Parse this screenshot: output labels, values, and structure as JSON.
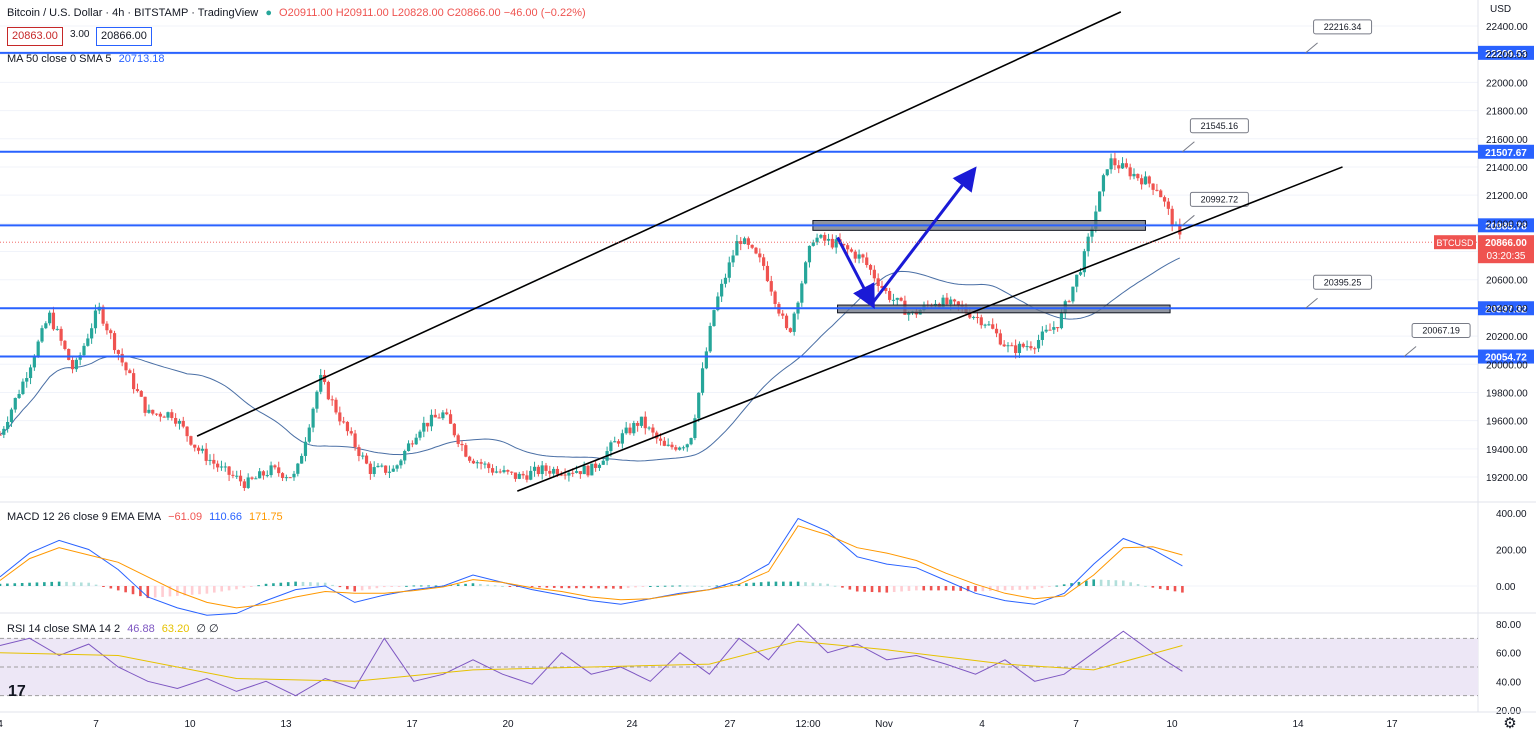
{
  "header": {
    "symbol_title": "Bitcoin / U.S. Dollar · 4h · BITSTAMP · TradingView",
    "ohlc": "O20911.00 H20911.00 L20828.00 C20866.00 −46.00 (−0.22%)",
    "bid": "20863.00",
    "spread": "3.00",
    "ask": "20866.00",
    "ma_label": "MA 50 close 0 SMA 5",
    "ma_value": "20713.18"
  },
  "macd_legend": {
    "label": "MACD 12 26 close 9 EMA EMA",
    "v1": "−61.09",
    "v2": "110.66",
    "v3": "171.75"
  },
  "rsi_legend": {
    "label": "RSI 14 close SMA 14 2",
    "v1": "46.88",
    "v2": "63.20",
    "v3": "∅ ∅"
  },
  "colors": {
    "up": "#26a69a",
    "down": "#ef5350",
    "level": "#2962ff",
    "ma": "#4a6fa5",
    "macd": "#2962ff",
    "signal": "#ff9800",
    "rsi": "#7e57c2",
    "rsi_band": "#ede7f6"
  },
  "icons": [
    "settings-gear-icon",
    "tradingview-logo-icon"
  ],
  "chart_data": [
    {
      "type": "candlestick",
      "title": "Bitcoin / U.S. Dollar · 4h · BITSTAMP · TradingView",
      "currency": "USD",
      "ylim": [
        19100,
        22500
      ],
      "y_ticks": [
        "22400.00",
        "22200.00",
        "22000.00",
        "21800.00",
        "21600.00",
        "21400.00",
        "21200.00",
        "21000.00",
        "20800.00",
        "20600.00",
        "20400.00",
        "20200.00",
        "20000.00",
        "19800.00",
        "19600.00",
        "19400.00",
        "19200.00"
      ],
      "x_labels": [
        "4",
        "7",
        "10",
        "13",
        "17",
        "20",
        "24",
        "27",
        "12:00",
        "Nov",
        "4",
        "7",
        "10",
        "14",
        "17"
      ],
      "price_path": [
        [
          0,
          19500
        ],
        [
          1,
          19900
        ],
        [
          2,
          20350
        ],
        [
          3,
          19950
        ],
        [
          4,
          20400
        ],
        [
          5,
          20000
        ],
        [
          6,
          19650
        ],
        [
          7,
          19650
        ],
        [
          8,
          19400
        ],
        [
          9,
          19250
        ],
        [
          10,
          19150
        ],
        [
          11,
          19250
        ],
        [
          12,
          19200
        ],
        [
          13,
          19900
        ],
        [
          14,
          19550
        ],
        [
          15,
          19250
        ],
        [
          16,
          19250
        ],
        [
          17,
          19550
        ],
        [
          18,
          19650
        ],
        [
          19,
          19350
        ],
        [
          20,
          19250
        ],
        [
          21,
          19200
        ],
        [
          22,
          19250
        ],
        [
          23,
          19250
        ],
        [
          24,
          19250
        ],
        [
          25,
          19450
        ],
        [
          26,
          19600
        ],
        [
          27,
          19400
        ],
        [
          28,
          19450
        ],
        [
          29,
          20400
        ],
        [
          30,
          20900
        ],
        [
          31,
          20700
        ],
        [
          32,
          20200
        ],
        [
          33,
          20900
        ],
        [
          34,
          20850
        ],
        [
          35,
          20750
        ],
        [
          36,
          20500
        ],
        [
          37,
          20350
        ],
        [
          38,
          20450
        ],
        [
          39,
          20400
        ],
        [
          40,
          20300
        ],
        [
          41,
          20100
        ],
        [
          42,
          20150
        ],
        [
          43,
          20300
        ],
        [
          44,
          20750
        ],
        [
          45,
          21450
        ],
        [
          46,
          21350
        ],
        [
          47,
          21250
        ],
        [
          48,
          20850
        ]
      ],
      "horizontal_levels": [
        {
          "price": 22209.53,
          "label": "22209.53",
          "callout": "22216.34"
        },
        {
          "price": 21507.67,
          "label": "21507.67",
          "callout": "21545.16"
        },
        {
          "price": 20985.78,
          "label": "20985.78",
          "callout": "20992.72"
        },
        {
          "price": 20397.32,
          "label": "20397.32",
          "callout": "20395.25"
        },
        {
          "price": 20054.72,
          "label": "20054.72",
          "callout": "20067.19"
        }
      ],
      "current_price": {
        "symbol": "BTCUSD",
        "price": "20866.00",
        "countdown": "03:20:35"
      },
      "zones": [
        [
          20950,
          21020
        ],
        [
          20365,
          20420
        ]
      ],
      "channel": {
        "upper": [
          [
            8,
            19490
          ],
          [
            45.5,
            22500
          ]
        ],
        "lower": [
          [
            21,
            19100
          ],
          [
            54.5,
            21400
          ]
        ]
      },
      "projection": [
        [
          34,
          20900
        ],
        [
          35.4,
          20430
        ],
        [
          39.5,
          21370
        ]
      ]
    },
    {
      "type": "histogram+line",
      "title": "MACD 12 26 close 9 EMA EMA",
      "ylim": [
        -200,
        450
      ],
      "y_ticks": [
        "400.00",
        "200.00",
        "0.00"
      ],
      "macd": [
        [
          0,
          50
        ],
        [
          1,
          180
        ],
        [
          2,
          250
        ],
        [
          3,
          200
        ],
        [
          4,
          90
        ],
        [
          5,
          -60
        ],
        [
          6,
          -120
        ],
        [
          7,
          -160
        ],
        [
          8,
          -150
        ],
        [
          9,
          -80
        ],
        [
          10,
          -20
        ],
        [
          11,
          0
        ],
        [
          12,
          -90
        ],
        [
          13,
          -50
        ],
        [
          14,
          -20
        ],
        [
          15,
          0
        ],
        [
          16,
          60
        ],
        [
          17,
          20
        ],
        [
          18,
          -20
        ],
        [
          19,
          -50
        ],
        [
          20,
          -80
        ],
        [
          21,
          -100
        ],
        [
          22,
          -70
        ],
        [
          23,
          -40
        ],
        [
          24,
          -20
        ],
        [
          25,
          30
        ],
        [
          26,
          120
        ],
        [
          27,
          370
        ],
        [
          28,
          300
        ],
        [
          29,
          160
        ],
        [
          30,
          120
        ],
        [
          31,
          100
        ],
        [
          32,
          30
        ],
        [
          33,
          -40
        ],
        [
          34,
          -80
        ],
        [
          35,
          -100
        ],
        [
          36,
          -40
        ],
        [
          37,
          120
        ],
        [
          38,
          260
        ],
        [
          39,
          200
        ],
        [
          40,
          110
        ]
      ],
      "signal": [
        [
          0,
          30
        ],
        [
          1,
          150
        ],
        [
          2,
          210
        ],
        [
          3,
          170
        ],
        [
          4,
          130
        ],
        [
          5,
          50
        ],
        [
          6,
          -30
        ],
        [
          7,
          -90
        ],
        [
          8,
          -120
        ],
        [
          9,
          -100
        ],
        [
          10,
          -60
        ],
        [
          11,
          -30
        ],
        [
          12,
          -40
        ],
        [
          13,
          -40
        ],
        [
          14,
          -25
        ],
        [
          15,
          -5
        ],
        [
          16,
          35
        ],
        [
          17,
          20
        ],
        [
          18,
          -10
        ],
        [
          19,
          -30
        ],
        [
          20,
          -60
        ],
        [
          21,
          -75
        ],
        [
          22,
          -70
        ],
        [
          23,
          -45
        ],
        [
          24,
          -20
        ],
        [
          25,
          10
        ],
        [
          26,
          80
        ],
        [
          27,
          330
        ],
        [
          28,
          280
        ],
        [
          29,
          210
        ],
        [
          30,
          180
        ],
        [
          31,
          140
        ],
        [
          32,
          70
        ],
        [
          33,
          10
        ],
        [
          34,
          -40
        ],
        [
          35,
          -70
        ],
        [
          36,
          -55
        ],
        [
          37,
          60
        ],
        [
          38,
          210
        ],
        [
          39,
          215
        ],
        [
          40,
          170
        ]
      ]
    },
    {
      "type": "line",
      "title": "RSI 14 close SMA 14 2",
      "ylim": [
        20,
        86
      ],
      "y_ticks": [
        "80.00",
        "60.00",
        "40.00",
        "20.00"
      ],
      "bands": [
        70,
        50,
        30
      ],
      "rsi": [
        [
          0,
          65
        ],
        [
          1,
          70
        ],
        [
          2,
          58
        ],
        [
          3,
          66
        ],
        [
          4,
          50
        ],
        [
          5,
          40
        ],
        [
          6,
          35
        ],
        [
          7,
          42
        ],
        [
          8,
          33
        ],
        [
          9,
          40
        ],
        [
          10,
          30
        ],
        [
          11,
          42
        ],
        [
          12,
          35
        ],
        [
          13,
          70
        ],
        [
          14,
          40
        ],
        [
          15,
          45
        ],
        [
          16,
          55
        ],
        [
          17,
          45
        ],
        [
          18,
          38
        ],
        [
          19,
          60
        ],
        [
          20,
          45
        ],
        [
          21,
          50
        ],
        [
          22,
          40
        ],
        [
          23,
          60
        ],
        [
          24,
          45
        ],
        [
          25,
          70
        ],
        [
          26,
          55
        ],
        [
          27,
          80
        ],
        [
          28,
          60
        ],
        [
          29,
          66
        ],
        [
          30,
          55
        ],
        [
          31,
          58
        ],
        [
          32,
          52
        ],
        [
          33,
          45
        ],
        [
          34,
          55
        ],
        [
          35,
          40
        ],
        [
          36,
          45
        ],
        [
          37,
          60
        ],
        [
          38,
          75
        ],
        [
          39,
          60
        ],
        [
          40,
          47
        ]
      ],
      "sma": [
        [
          0,
          60
        ],
        [
          4,
          58
        ],
        [
          8,
          42
        ],
        [
          12,
          40
        ],
        [
          16,
          48
        ],
        [
          20,
          50
        ],
        [
          24,
          52
        ],
        [
          27,
          68
        ],
        [
          30,
          62
        ],
        [
          34,
          52
        ],
        [
          37,
          48
        ],
        [
          40,
          65
        ]
      ]
    }
  ]
}
